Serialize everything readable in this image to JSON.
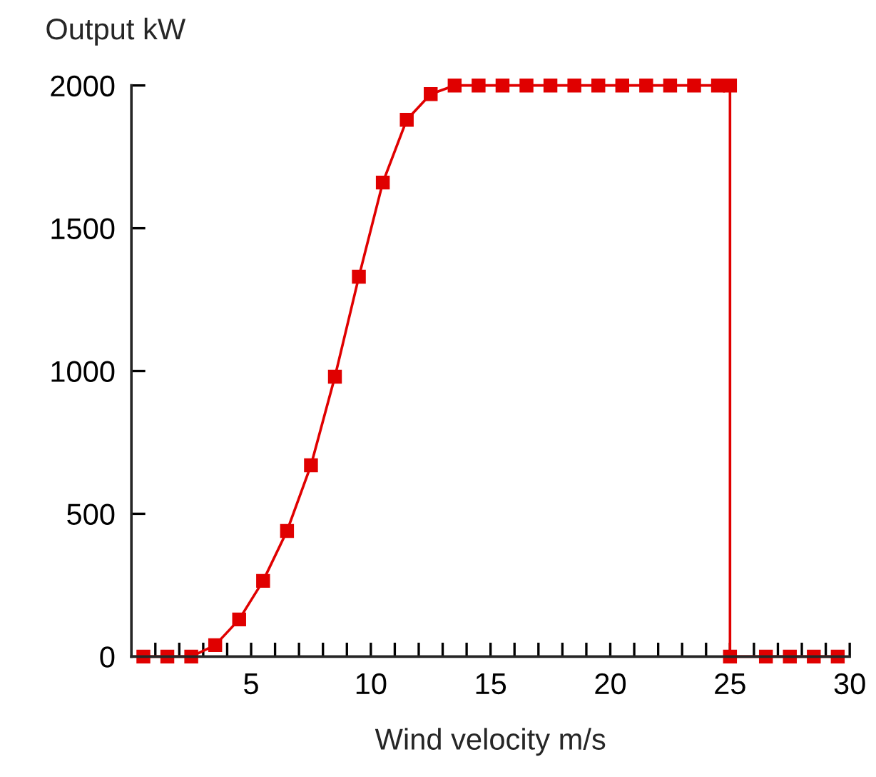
{
  "chart_data": {
    "type": "line",
    "ylabel": "Output kW",
    "xlabel": "Wind velocity m/s",
    "series": [
      {
        "color": "#e00000",
        "x": [
          0.5,
          1.5,
          2.5,
          3.5,
          4.5,
          5.5,
          6.5,
          7.5,
          8.5,
          9.5,
          10.5,
          11.5,
          12.5,
          13.5,
          14.5,
          15.5,
          16.5,
          17.5,
          18.5,
          19.5,
          20.5,
          21.5,
          22.5,
          23.5,
          24.5,
          25,
          25,
          26.5,
          27.5,
          28.5,
          29.5
        ],
        "values": [
          0,
          0,
          0,
          40,
          130,
          265,
          440,
          670,
          980,
          1330,
          1660,
          1880,
          1970,
          2000,
          2000,
          2000,
          2000,
          2000,
          2000,
          2000,
          2000,
          2000,
          2000,
          2000,
          2000,
          2000,
          0,
          0,
          0,
          0,
          0
        ]
      }
    ],
    "marker": "square",
    "line_style": "solid",
    "grid": false,
    "legend": false,
    "xlim": [
      0,
      30
    ],
    "xticks": [
      {
        "value": 1,
        "label": null
      },
      {
        "value": 2,
        "label": null
      },
      {
        "value": 3,
        "label": null
      },
      {
        "value": 4,
        "label": null
      },
      5,
      {
        "value": 6,
        "label": null
      },
      {
        "value": 7,
        "label": null
      },
      {
        "value": 8,
        "label": null
      },
      {
        "value": 9,
        "label": null
      },
      10,
      {
        "value": 11,
        "label": null
      },
      {
        "value": 12,
        "label": null
      },
      {
        "value": 13,
        "label": null
      },
      {
        "value": 14,
        "label": null
      },
      15,
      {
        "value": 16,
        "label": null
      },
      {
        "value": 17,
        "label": null
      },
      {
        "value": 18,
        "label": null
      },
      {
        "value": 19,
        "label": null
      },
      20,
      {
        "value": 21,
        "label": null
      },
      {
        "value": 22,
        "label": null
      },
      {
        "value": 23,
        "label": null
      },
      {
        "value": 24,
        "label": null
      },
      25,
      {
        "value": 26,
        "label": null
      },
      {
        "value": 27,
        "label": null
      },
      {
        "value": 28,
        "label": null
      },
      {
        "value": 29,
        "label": null
      },
      30
    ],
    "ylim": [
      0,
      2000
    ],
    "yticks": [
      0,
      500,
      1000,
      1500,
      2000
    ]
  }
}
